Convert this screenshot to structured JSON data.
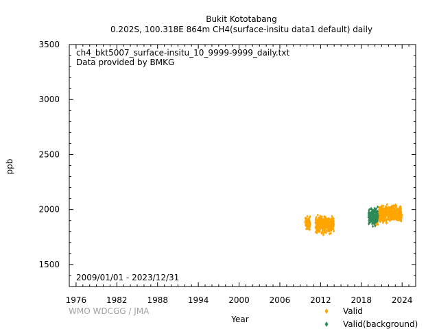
{
  "chart_data": {
    "type": "scatter",
    "title": "Bukit Kototabang",
    "subtitle": "0.202S, 100.318E 864m    CH4(surface-insitu data1 default) daily",
    "file_label": "ch4_bkt5007_surface-insitu_10_9999-9999_daily.txt",
    "provider_label": "Data provided by BMKG",
    "period_label": "2009/01/01 - 2023/12/31",
    "credit": "WMO WDCGG / JMA",
    "xlabel": "Year",
    "ylabel": "ppb",
    "xlim": [
      1975,
      2026
    ],
    "ylim": [
      1300,
      3500
    ],
    "x_ticks": [
      1976,
      1982,
      1988,
      1994,
      2000,
      2006,
      2012,
      2018,
      2024
    ],
    "y_ticks": [
      1500,
      2000,
      2500,
      3000,
      3500
    ],
    "legend_position": "bottom-right",
    "series": [
      {
        "name": "Valid",
        "color": "#ffa500",
        "marker": "diamond",
        "segments": [
          {
            "start": 2009.75,
            "end": 2010.45,
            "low": 1790,
            "high": 1960
          },
          {
            "start": 2011.25,
            "end": 2013.95,
            "low": 1765,
            "high": 1960
          },
          {
            "start": 2019.9,
            "end": 2020.45,
            "low": 1840,
            "high": 1990
          },
          {
            "start": 2020.55,
            "end": 2023.95,
            "low": 1860,
            "high": 2060
          }
        ]
      },
      {
        "name": "Valid(background)",
        "color": "#2e8b57",
        "marker": "diamond",
        "segments": [
          {
            "start": 2019.05,
            "end": 2020.45,
            "low": 1830,
            "high": 2040
          }
        ]
      }
    ]
  }
}
